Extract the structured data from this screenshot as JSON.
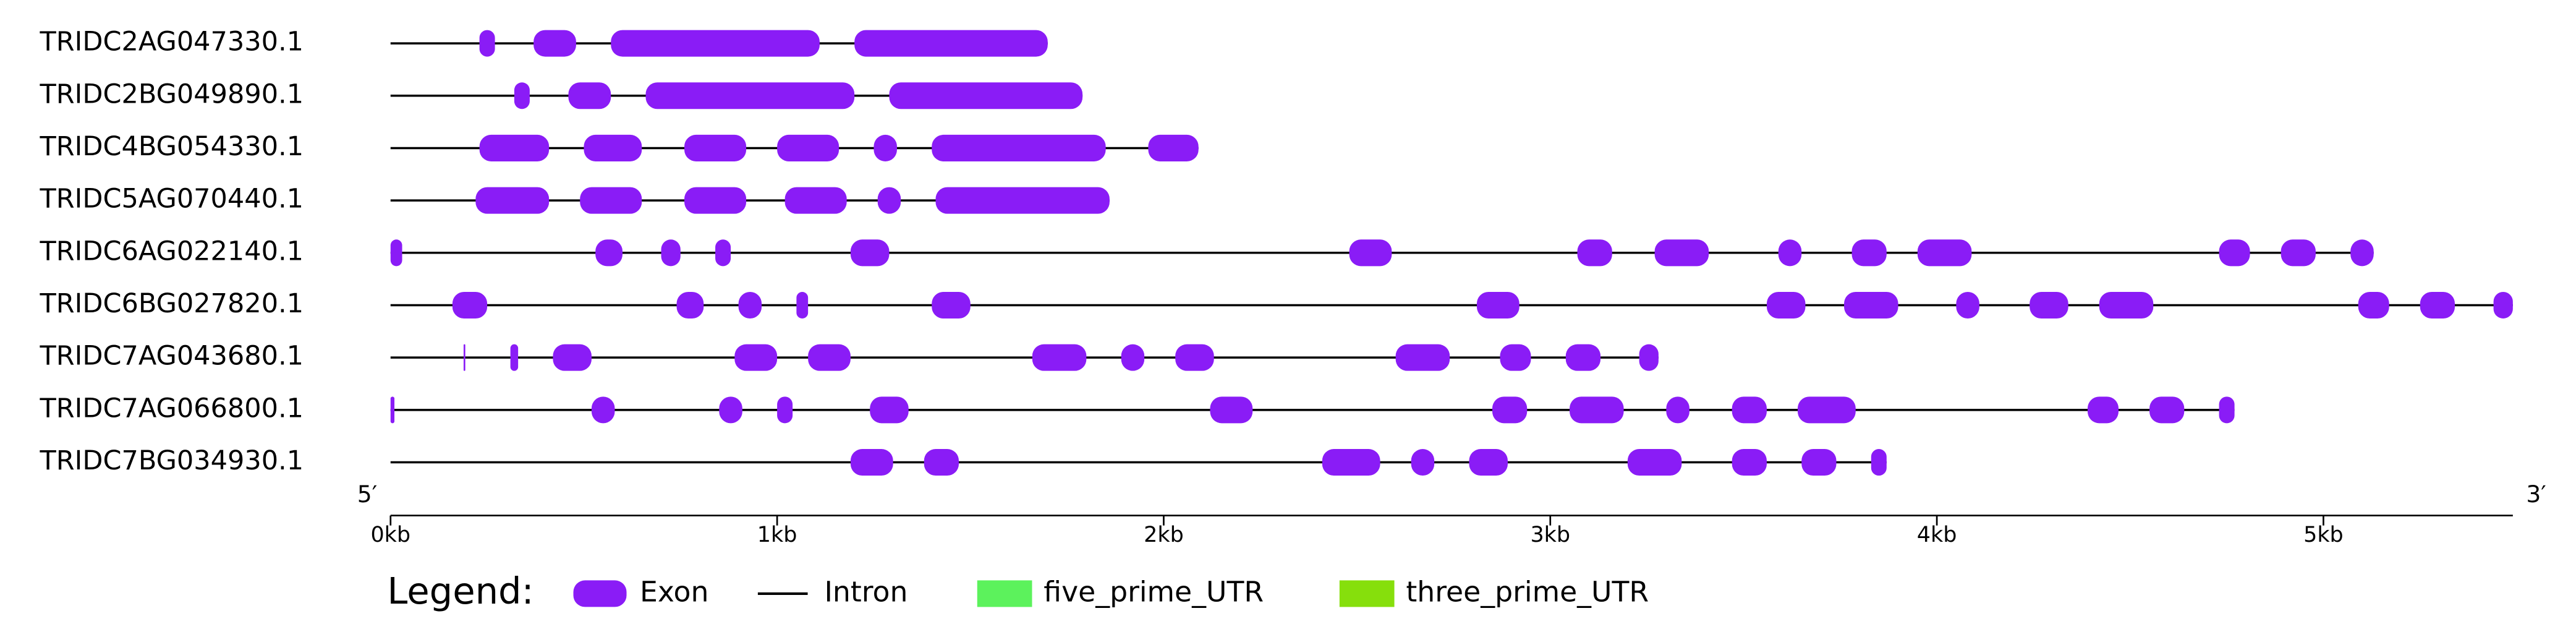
{
  "chart_data": {
    "type": "gene-structure",
    "xlim": [
      0,
      5.49
    ],
    "xticks": [
      {
        "value": 0,
        "label": "0kb"
      },
      {
        "value": 1,
        "label": "1kb"
      },
      {
        "value": 2,
        "label": "2kb"
      },
      {
        "value": 3,
        "label": "3kb"
      },
      {
        "value": 4,
        "label": "4kb"
      },
      {
        "value": 5,
        "label": "5kb"
      }
    ],
    "start_label": "5′",
    "end_label": "3′",
    "genes": [
      {
        "name": "TRIDC2AG047330.1",
        "end": 1.7,
        "exons": [
          [
            0.23,
            0.27
          ],
          [
            0.37,
            0.48
          ],
          [
            0.57,
            1.11
          ],
          [
            1.2,
            1.7
          ]
        ]
      },
      {
        "name": "TRIDC2BG049890.1",
        "end": 1.79,
        "exons": [
          [
            0.32,
            0.36
          ],
          [
            0.46,
            0.57
          ],
          [
            0.66,
            1.2
          ],
          [
            1.29,
            1.79
          ]
        ]
      },
      {
        "name": "TRIDC4BG054330.1",
        "end": 2.09,
        "exons": [
          [
            0.23,
            0.41
          ],
          [
            0.5,
            0.65
          ],
          [
            0.76,
            0.92
          ],
          [
            1.0,
            1.16
          ],
          [
            1.25,
            1.31
          ],
          [
            1.4,
            1.85
          ],
          [
            1.96,
            2.09
          ]
        ]
      },
      {
        "name": "TRIDC5AG070440.1",
        "end": 1.86,
        "exons": [
          [
            0.22,
            0.41
          ],
          [
            0.49,
            0.65
          ],
          [
            0.76,
            0.92
          ],
          [
            1.02,
            1.18
          ],
          [
            1.26,
            1.32
          ],
          [
            1.41,
            1.86
          ]
        ]
      },
      {
        "name": "TRIDC6AG022140.1",
        "end": 5.13,
        "exons": [
          [
            0.0,
            0.03
          ],
          [
            0.53,
            0.6
          ],
          [
            0.7,
            0.75
          ],
          [
            0.84,
            0.88
          ],
          [
            1.19,
            1.29
          ],
          [
            2.48,
            2.59
          ],
          [
            3.07,
            3.16
          ],
          [
            3.27,
            3.41
          ],
          [
            3.59,
            3.65
          ],
          [
            3.78,
            3.87
          ],
          [
            3.95,
            4.09
          ],
          [
            4.73,
            4.81
          ],
          [
            4.89,
            4.98
          ],
          [
            5.07,
            5.13
          ]
        ]
      },
      {
        "name": "TRIDC6BG027820.1",
        "end": 5.49,
        "exons": [
          [
            0.16,
            0.25
          ],
          [
            0.74,
            0.81
          ],
          [
            0.9,
            0.96
          ],
          [
            1.05,
            1.08
          ],
          [
            1.4,
            1.5
          ],
          [
            2.81,
            2.92
          ],
          [
            3.56,
            3.66
          ],
          [
            3.76,
            3.9
          ],
          [
            4.05,
            4.11
          ],
          [
            4.24,
            4.34
          ],
          [
            4.42,
            4.56
          ],
          [
            5.09,
            5.17
          ],
          [
            5.25,
            5.34
          ],
          [
            5.44,
            5.49
          ]
        ]
      },
      {
        "name": "TRIDC7AG043680.1",
        "end": 3.28,
        "exons": [
          [
            0.189,
            0.193
          ],
          [
            0.31,
            0.33
          ],
          [
            0.42,
            0.52
          ],
          [
            0.89,
            1.0
          ],
          [
            1.08,
            1.19
          ],
          [
            1.66,
            1.8
          ],
          [
            1.89,
            1.95
          ],
          [
            2.03,
            2.13
          ],
          [
            2.6,
            2.74
          ],
          [
            2.87,
            2.95
          ],
          [
            3.04,
            3.13
          ],
          [
            3.23,
            3.28
          ]
        ]
      },
      {
        "name": "TRIDC7AG066800.1",
        "end": 4.77,
        "exons": [
          [
            0.0,
            0.01
          ],
          [
            0.52,
            0.58
          ],
          [
            0.85,
            0.91
          ],
          [
            1.0,
            1.04
          ],
          [
            1.24,
            1.34
          ],
          [
            2.12,
            2.23
          ],
          [
            2.85,
            2.94
          ],
          [
            3.05,
            3.19
          ],
          [
            3.3,
            3.36
          ],
          [
            3.47,
            3.56
          ],
          [
            3.64,
            3.79
          ],
          [
            4.39,
            4.47
          ],
          [
            4.55,
            4.64
          ],
          [
            4.73,
            4.77
          ]
        ]
      },
      {
        "name": "TRIDC7BG034930.1",
        "end": 3.87,
        "exons": [
          [
            1.19,
            1.3
          ],
          [
            1.38,
            1.47
          ],
          [
            2.41,
            2.56
          ],
          [
            2.64,
            2.7
          ],
          [
            2.79,
            2.89
          ],
          [
            3.2,
            3.34
          ],
          [
            3.47,
            3.56
          ],
          [
            3.65,
            3.74
          ],
          [
            3.83,
            3.87
          ]
        ]
      }
    ],
    "legend": {
      "title": "Legend:",
      "items": [
        {
          "label": "Exon",
          "color": "#8a1cf6",
          "shape": "exon"
        },
        {
          "label": "Intron",
          "color": "#000000",
          "shape": "line"
        },
        {
          "label": "five_prime_UTR",
          "color": "#5cf25c",
          "shape": "box"
        },
        {
          "label": "three_prime_UTR",
          "color": "#86df0c",
          "shape": "box"
        }
      ]
    }
  }
}
